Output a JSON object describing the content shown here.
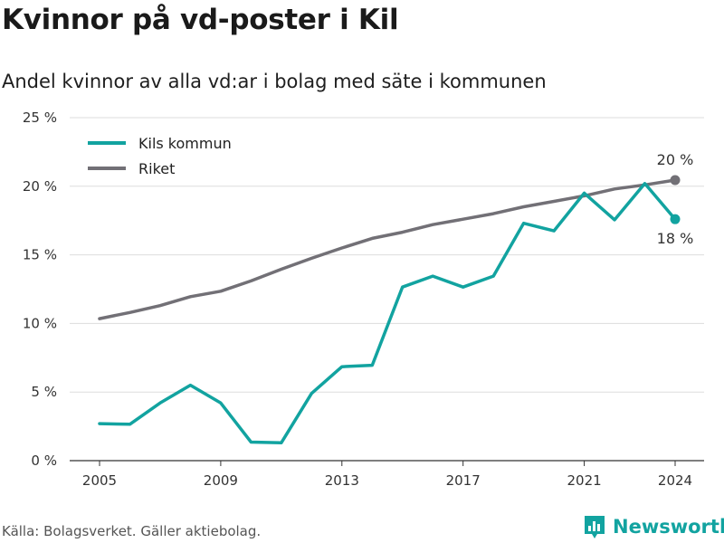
{
  "header": {
    "title": "Kvinnor på vd-poster i Kil",
    "subtitle": "Andel kvinnor av alla vd:ar i bolag med säte i kommunen"
  },
  "footer": {
    "source": "Källa: Bolagsverket. Gäller aktiebolag.",
    "brand": "Newsworthy"
  },
  "colors": {
    "kils_kommun": "#12a3a0",
    "riket": "#727076",
    "grid": "#dddddd",
    "text": "#333333",
    "brand": "#12a3a0"
  },
  "chart_data": {
    "type": "line",
    "x": [
      2005,
      2006,
      2007,
      2008,
      2009,
      2010,
      2011,
      2012,
      2013,
      2014,
      2015,
      2016,
      2017,
      2018,
      2019,
      2020,
      2021,
      2022,
      2023,
      2024
    ],
    "series": [
      {
        "name": "Kils kommun",
        "values": [
          2.7,
          2.65,
          4.2,
          5.5,
          4.2,
          1.35,
          1.3,
          4.9,
          6.85,
          6.95,
          12.65,
          13.45,
          12.65,
          13.45,
          17.3,
          16.75,
          19.5,
          17.55,
          20.2,
          17.6
        ],
        "end_label": "18 %"
      },
      {
        "name": "Riket",
        "values": [
          10.35,
          10.8,
          11.3,
          11.95,
          12.35,
          13.1,
          13.95,
          14.75,
          15.5,
          16.2,
          16.65,
          17.2,
          17.6,
          18.0,
          18.5,
          18.9,
          19.3,
          19.8,
          20.1,
          20.45
        ],
        "end_label": "20 %"
      }
    ],
    "x_ticks": [
      2005,
      2009,
      2013,
      2017,
      2021,
      2024
    ],
    "y_ticks": [
      0,
      5,
      10,
      15,
      20,
      25
    ],
    "y_tick_labels": [
      "0 %",
      "5 %",
      "10 %",
      "15 %",
      "20 %",
      "25 %"
    ],
    "ylim": [
      0,
      25
    ],
    "xlim": [
      2005,
      2024
    ],
    "grid": "horizontal",
    "legend_position": "top-left",
    "title": "Kvinnor på vd-poster i Kil",
    "subtitle": "Andel kvinnor av alla vd:ar i bolag med säte i kommunen",
    "xlabel": "",
    "ylabel": ""
  }
}
